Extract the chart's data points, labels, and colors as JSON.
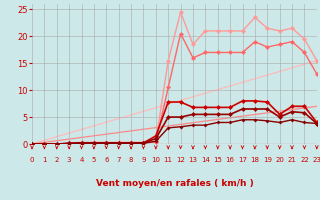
{
  "bg_color": "#cce8e8",
  "grid_color": "#aaaaaa",
  "xlabel": "Vent moyen/en rafales ( km/h )",
  "tick_color": "#cc0000",
  "xmin": 0,
  "xmax": 23,
  "ymin": 0,
  "ymax": 26,
  "yticks": [
    0,
    5,
    10,
    15,
    20,
    25
  ],
  "xticks": [
    0,
    1,
    2,
    3,
    4,
    5,
    6,
    7,
    8,
    9,
    10,
    11,
    12,
    13,
    14,
    15,
    16,
    17,
    18,
    19,
    20,
    21,
    22,
    23
  ],
  "lines": [
    {
      "x": [
        0,
        1,
        2,
        3,
        4,
        5,
        6,
        7,
        8,
        9,
        10,
        11,
        12,
        13,
        14,
        15,
        16,
        17,
        18,
        19,
        20,
        21,
        22,
        23
      ],
      "y": [
        0,
        0,
        0,
        0.2,
        0.3,
        0.3,
        0.3,
        0.3,
        0.3,
        0.3,
        0.5,
        15.5,
        24.5,
        18.5,
        21.0,
        21.0,
        21.0,
        21.0,
        23.5,
        21.5,
        21.0,
        21.5,
        19.5,
        15.5
      ],
      "color": "#ff9999",
      "lw": 1.0,
      "marker": "D",
      "ms": 2.5
    },
    {
      "x": [
        0,
        1,
        2,
        3,
        4,
        5,
        6,
        7,
        8,
        9,
        10,
        11,
        12,
        13,
        14,
        15,
        16,
        17,
        18,
        19,
        20,
        21,
        22,
        23
      ],
      "y": [
        0,
        0,
        0,
        0.1,
        0.2,
        0.2,
        0.2,
        0.2,
        0.2,
        0.2,
        0.4,
        10.5,
        20.5,
        16.0,
        17.0,
        17.0,
        17.0,
        17.0,
        19.0,
        18.0,
        18.5,
        19.0,
        17.0,
        13.0
      ],
      "color": "#ff6666",
      "lw": 1.0,
      "marker": "D",
      "ms": 2.5
    },
    {
      "x": [
        0,
        1,
        2,
        3,
        4,
        5,
        6,
        7,
        8,
        9,
        10,
        11,
        12,
        13,
        14,
        15,
        16,
        17,
        18,
        19,
        20,
        21,
        22,
        23
      ],
      "y": [
        0,
        0,
        0,
        0.1,
        0.2,
        0.2,
        0.2,
        0.2,
        0.2,
        0.2,
        1.5,
        7.8,
        7.8,
        6.8,
        6.8,
        6.8,
        6.8,
        8.0,
        8.0,
        7.8,
        5.5,
        7.0,
        7.0,
        4.0
      ],
      "color": "#cc0000",
      "lw": 1.2,
      "marker": "D",
      "ms": 2.5
    },
    {
      "x": [
        0,
        1,
        2,
        3,
        4,
        5,
        6,
        7,
        8,
        9,
        10,
        11,
        12,
        13,
        14,
        15,
        16,
        17,
        18,
        19,
        20,
        21,
        22,
        23
      ],
      "y": [
        0,
        0,
        0,
        0.1,
        0.2,
        0.2,
        0.2,
        0.2,
        0.2,
        0.2,
        1.0,
        5.0,
        5.0,
        5.5,
        5.5,
        5.5,
        5.5,
        6.5,
        6.5,
        6.5,
        5.0,
        6.0,
        5.8,
        3.8
      ],
      "color": "#990000",
      "lw": 1.2,
      "marker": "D",
      "ms": 2.5
    },
    {
      "x": [
        0,
        1,
        2,
        3,
        4,
        5,
        6,
        7,
        8,
        9,
        10,
        11,
        12,
        13,
        14,
        15,
        16,
        17,
        18,
        19,
        20,
        21,
        22,
        23
      ],
      "y": [
        0,
        0,
        0,
        0.1,
        0.15,
        0.15,
        0.15,
        0.15,
        0.15,
        0.15,
        0.5,
        3.0,
        3.2,
        3.5,
        3.5,
        4.0,
        4.0,
        4.5,
        4.5,
        4.3,
        4.0,
        4.5,
        4.0,
        3.8
      ],
      "color": "#880000",
      "lw": 1.0,
      "marker": "D",
      "ms": 2.0
    },
    {
      "x": [
        0,
        23
      ],
      "y": [
        0,
        15.5
      ],
      "color": "#ffbbbb",
      "lw": 0.9,
      "marker": null,
      "ms": 0
    },
    {
      "x": [
        0,
        23
      ],
      "y": [
        0,
        7.0
      ],
      "color": "#ff8888",
      "lw": 0.9,
      "marker": null,
      "ms": 0
    }
  ]
}
